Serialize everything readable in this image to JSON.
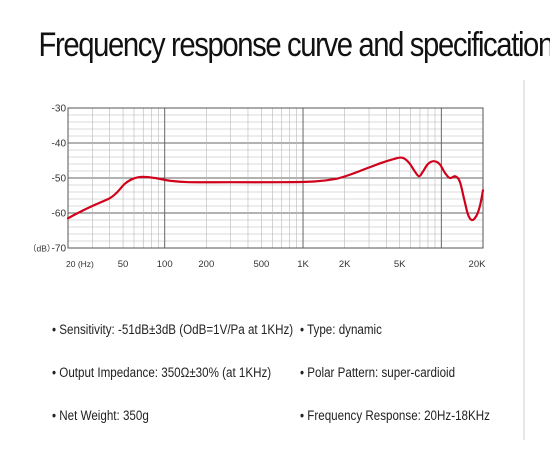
{
  "title": "Frequency response curve and specification",
  "chart_data": {
    "type": "line",
    "y_tick_labels": [
      "-30",
      "-40",
      "-50",
      "-60",
      "-70"
    ],
    "y_unit_label": "（dB）",
    "yticks": [
      -30,
      -40,
      -50,
      -60,
      -70
    ],
    "ylim": [
      -70,
      -30
    ],
    "x_scale": "log",
    "xlim": [
      20,
      20000
    ],
    "x_tick_labels": [
      "20 (Hz)",
      "50",
      "100",
      "200",
      "500",
      "1K",
      "2K",
      "5K",
      "20K"
    ],
    "xticks": [
      20,
      50,
      100,
      200,
      500,
      1000,
      2000,
      5000,
      20000
    ],
    "grid": true,
    "series": [
      {
        "color": "#d0021b",
        "points": [
          [
            20,
            -61.5
          ],
          [
            25,
            -59.5
          ],
          [
            32,
            -57.5
          ],
          [
            40,
            -55.8
          ],
          [
            45,
            -54.2
          ],
          [
            52,
            -51.5
          ],
          [
            60,
            -50.1
          ],
          [
            70,
            -49.7
          ],
          [
            85,
            -50.0
          ],
          [
            110,
            -50.8
          ],
          [
            150,
            -51.2
          ],
          [
            300,
            -51.2
          ],
          [
            700,
            -51.2
          ],
          [
            1200,
            -51.0
          ],
          [
            1700,
            -50.3
          ],
          [
            2200,
            -49.0
          ],
          [
            3000,
            -47.0
          ],
          [
            3800,
            -45.5
          ],
          [
            4600,
            -44.5
          ],
          [
            5200,
            -44.2
          ],
          [
            5800,
            -45.5
          ],
          [
            6400,
            -48.0
          ],
          [
            6900,
            -49.5
          ],
          [
            7400,
            -48.0
          ],
          [
            8000,
            -46.0
          ],
          [
            8800,
            -45.2
          ],
          [
            9700,
            -46.0
          ],
          [
            10600,
            -48.5
          ],
          [
            11500,
            -50.0
          ],
          [
            12600,
            -49.5
          ],
          [
            13600,
            -51.0
          ],
          [
            14600,
            -56.0
          ],
          [
            15600,
            -60.5
          ],
          [
            16600,
            -62.0
          ],
          [
            17800,
            -61.0
          ],
          [
            19000,
            -58.0
          ],
          [
            20000,
            -53.5
          ]
        ]
      }
    ]
  },
  "specs": [
    {
      "text": "• Sensitivity: -51dB±3dB (OdB=1V/Pa at 1KHz)"
    },
    {
      "text": "• Type: dynamic"
    },
    {
      "text": "• Output Impedance: 350Ω±30% (at 1KHz)"
    },
    {
      "text": "• Polar Pattern: super-cardioid"
    },
    {
      "text": "• Net Weight: 350g"
    },
    {
      "text": "• Frequency Response: 20Hz-18KHz"
    }
  ]
}
